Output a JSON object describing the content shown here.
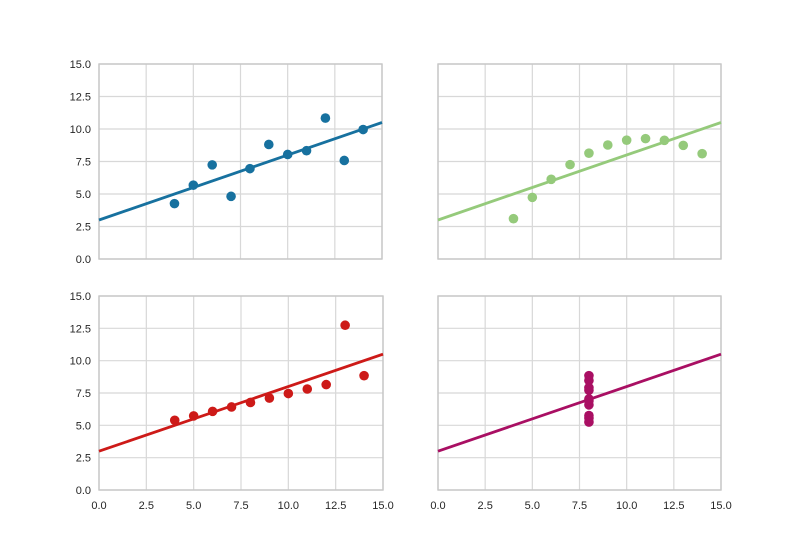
{
  "figure": {
    "background": "#ffffff",
    "grid_color": "#d8d8d8",
    "spine_color": "#c6c6c6",
    "tick_label_color": "#262626"
  },
  "chart_data": [
    {
      "type": "scatter",
      "dataset": "I",
      "position": "top-left",
      "color": "#17719f",
      "x": [
        10,
        8,
        13,
        9,
        11,
        14,
        6,
        4,
        12,
        7,
        5
      ],
      "y": [
        8.04,
        6.95,
        7.58,
        8.81,
        8.33,
        9.96,
        7.24,
        4.26,
        10.84,
        4.82,
        5.68
      ],
      "regression_line": {
        "x": [
          0,
          15
        ],
        "y": [
          3.0,
          10.5
        ]
      },
      "xlim": [
        0,
        15
      ],
      "ylim": [
        0,
        15
      ],
      "ticks": [
        0,
        2.5,
        5,
        7.5,
        10,
        12.5,
        15
      ],
      "tick_labels": [
        "0.0",
        "2.5",
        "5.0",
        "7.5",
        "10.0",
        "12.5",
        "15.0"
      ],
      "show_xtick_labels": false,
      "show_ytick_labels": true,
      "grid": true,
      "title": ""
    },
    {
      "type": "scatter",
      "dataset": "II",
      "position": "top-right",
      "color": "#95ca7b",
      "x": [
        10,
        8,
        13,
        9,
        11,
        14,
        6,
        4,
        12,
        7,
        5
      ],
      "y": [
        9.14,
        8.14,
        8.74,
        8.77,
        9.26,
        8.1,
        6.13,
        3.1,
        9.13,
        7.26,
        4.74
      ],
      "regression_line": {
        "x": [
          0,
          15
        ],
        "y": [
          3.0,
          10.5
        ]
      },
      "xlim": [
        0,
        15
      ],
      "ylim": [
        0,
        15
      ],
      "ticks": [
        0,
        2.5,
        5,
        7.5,
        10,
        12.5,
        15
      ],
      "tick_labels": [
        "0.0",
        "2.5",
        "5.0",
        "7.5",
        "10.0",
        "12.5",
        "15.0"
      ],
      "show_xtick_labels": false,
      "show_ytick_labels": false,
      "grid": true,
      "title": ""
    },
    {
      "type": "scatter",
      "dataset": "III",
      "position": "bottom-left",
      "color": "#cd1a18",
      "x": [
        10,
        8,
        13,
        9,
        11,
        14,
        6,
        4,
        12,
        7,
        5
      ],
      "y": [
        7.46,
        6.77,
        12.74,
        7.11,
        7.81,
        8.84,
        6.08,
        5.39,
        8.15,
        6.42,
        5.73
      ],
      "regression_line": {
        "x": [
          0,
          15
        ],
        "y": [
          3.0,
          10.5
        ]
      },
      "xlim": [
        0,
        15
      ],
      "ylim": [
        0,
        15
      ],
      "ticks": [
        0,
        2.5,
        5,
        7.5,
        10,
        12.5,
        15
      ],
      "tick_labels": [
        "0.0",
        "2.5",
        "5.0",
        "7.5",
        "10.0",
        "12.5",
        "15.0"
      ],
      "show_xtick_labels": true,
      "show_ytick_labels": true,
      "grid": true,
      "title": ""
    },
    {
      "type": "scatter",
      "dataset": "IV",
      "position": "bottom-right",
      "color": "#a90f63",
      "x": [
        8,
        8,
        8,
        8,
        8,
        8,
        8,
        8,
        8,
        8
      ],
      "y": [
        6.58,
        5.76,
        7.71,
        8.84,
        8.47,
        7.04,
        5.25,
        5.56,
        7.91,
        6.89
      ],
      "regression_line": {
        "x": [
          0,
          15
        ],
        "y": [
          3.0,
          10.5
        ]
      },
      "xlim": [
        0,
        15
      ],
      "ylim": [
        0,
        15
      ],
      "ticks": [
        0,
        2.5,
        5,
        7.5,
        10,
        12.5,
        15
      ],
      "tick_labels": [
        "0.0",
        "2.5",
        "5.0",
        "7.5",
        "10.0",
        "12.5",
        "15.0"
      ],
      "show_xtick_labels": true,
      "show_ytick_labels": false,
      "grid": true,
      "title": ""
    }
  ]
}
